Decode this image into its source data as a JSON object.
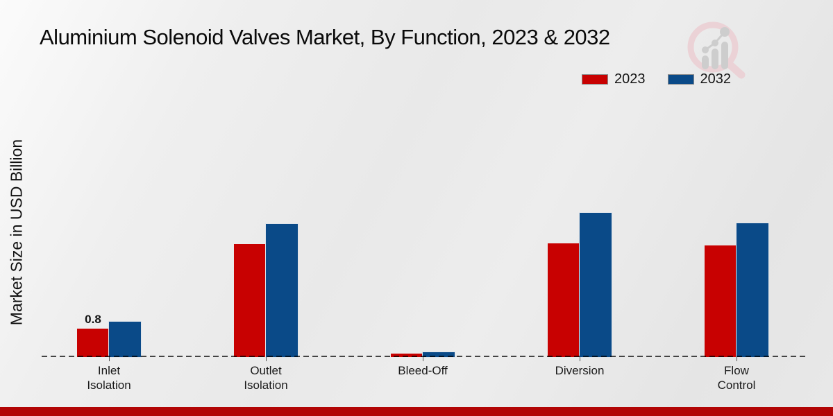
{
  "header": {
    "title": "Aluminium Solenoid Valves Market, By Function, 2023 & 2032"
  },
  "legend": {
    "items": [
      {
        "label": "2023",
        "color": "#c80101"
      },
      {
        "label": "2032",
        "color": "#0a4a88"
      }
    ]
  },
  "axis": {
    "ylabel": "Market Size in USD Billion"
  },
  "chart_data": {
    "type": "bar",
    "title": "Aluminium Solenoid Valves Market, By Function, 2023 & 2032",
    "ylabel": "Market Size in USD Billion",
    "units": "USD Billion",
    "categories": [
      "Inlet Isolation",
      "Outlet Isolation",
      "Bleed-Off",
      "Diversion",
      "Flow Control"
    ],
    "category_label_lines": [
      [
        "Inlet",
        "Isolation"
      ],
      [
        "Outlet",
        "Isolation"
      ],
      [
        "Bleed-Off"
      ],
      [
        "Diversion"
      ],
      [
        "Flow",
        "Control"
      ]
    ],
    "series": [
      {
        "name": "2023",
        "color": "#c80101",
        "values": [
          0.8,
          3.18,
          0.1,
          3.2,
          3.15
        ]
      },
      {
        "name": "2032",
        "color": "#0a4a88",
        "values": [
          1.0,
          3.75,
          0.14,
          4.05,
          3.77
        ]
      }
    ],
    "data_labels": [
      {
        "series": "2023",
        "category": "Inlet Isolation",
        "text": "0.8"
      }
    ],
    "ylim": [
      0,
      4.5
    ],
    "grid": false,
    "legend_position": "top-right",
    "baseline": {
      "style": "dashed",
      "color": "#444444"
    }
  },
  "footer": {
    "brand_bar_color": "#b20505"
  }
}
